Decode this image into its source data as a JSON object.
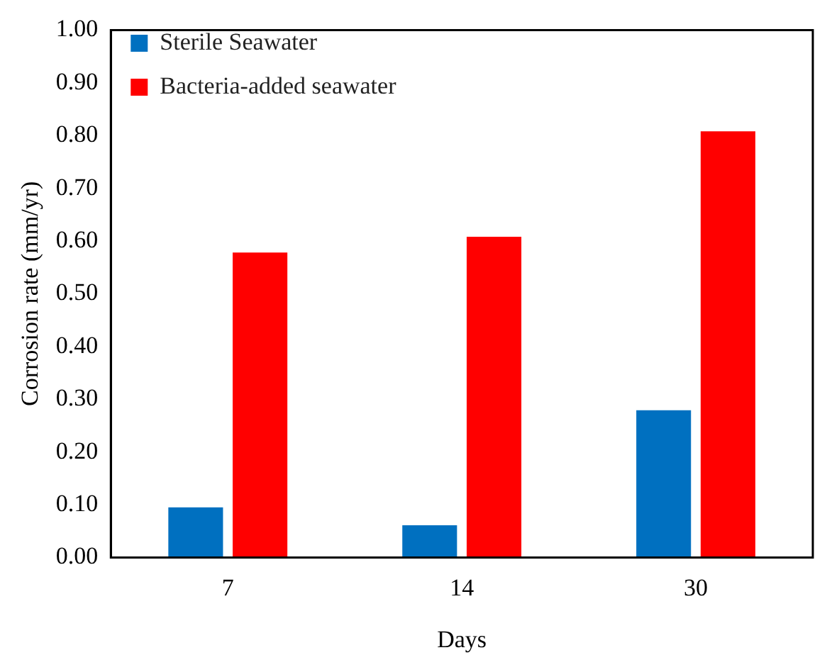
{
  "chart_data": {
    "type": "bar",
    "xlabel": "Days",
    "ylabel": "Corrosion rate (mm/yr)",
    "categories": [
      "7",
      "14",
      "30"
    ],
    "series": [
      {
        "name": "Sterile Seawater",
        "color": "#0070c0",
        "values": [
          0.095,
          0.061,
          0.279
        ]
      },
      {
        "name": "Bacteria-added seawater",
        "color": "#ff0000",
        "values": [
          0.578,
          0.608,
          0.808
        ]
      }
    ],
    "ylim": [
      0,
      1
    ],
    "yticks": [
      {
        "value": 0,
        "label": "0.00"
      },
      {
        "value": 0.1,
        "label": "0.10"
      },
      {
        "value": 0.2,
        "label": "0.20"
      },
      {
        "value": 0.3,
        "label": "0.30"
      },
      {
        "value": 0.4,
        "label": "0.40"
      },
      {
        "value": 0.5,
        "label": "0.50"
      },
      {
        "value": 0.6,
        "label": "0.60"
      },
      {
        "value": 0.7,
        "label": "0.70"
      },
      {
        "value": 0.8,
        "label": "0.80"
      },
      {
        "value": 0.9,
        "label": "0.90"
      },
      {
        "value": 1,
        "label": "1.00"
      }
    ],
    "grid": false,
    "legend": "top left"
  }
}
